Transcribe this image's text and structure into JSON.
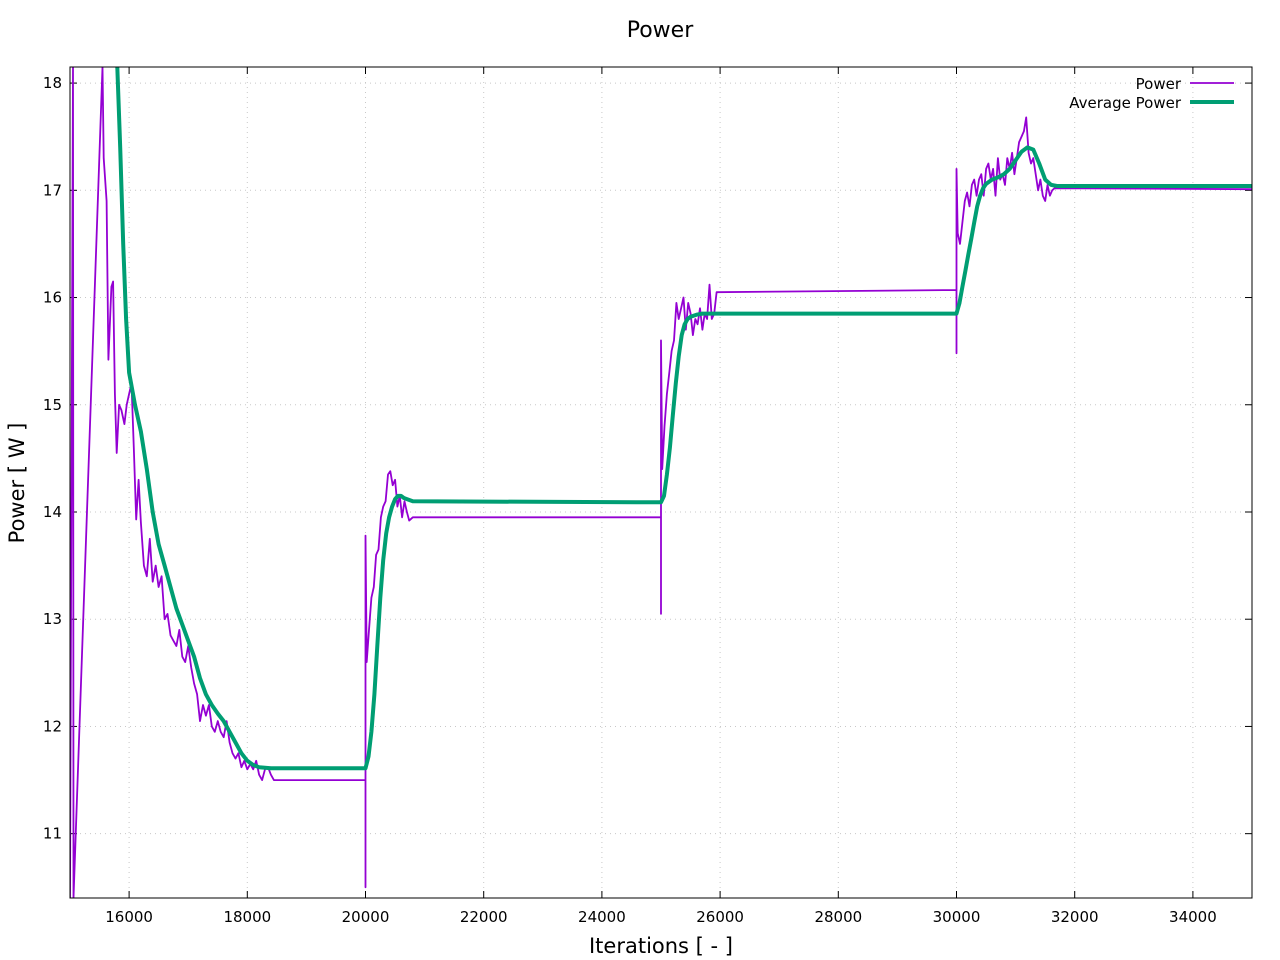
{
  "chart_data": {
    "type": "line",
    "title": "Power",
    "xlabel": "Iterations [ - ]",
    "ylabel": "Power [ W ]",
    "xlim": [
      15000,
      35000
    ],
    "ylim": [
      10.4,
      18.15
    ],
    "xticks": [
      16000,
      18000,
      20000,
      22000,
      24000,
      26000,
      28000,
      30000,
      32000,
      34000
    ],
    "yticks": [
      11,
      12,
      13,
      14,
      15,
      16,
      17,
      18
    ],
    "grid": true,
    "legend_position": "top-right",
    "series": [
      {
        "name": "Power",
        "color": "#9400d3",
        "points": [
          [
            15000,
            10.4
          ],
          [
            15050,
            18.15
          ],
          [
            15060,
            10.4
          ],
          [
            15550,
            18.15
          ],
          [
            15570,
            17.3
          ],
          [
            15620,
            16.9
          ],
          [
            15650,
            15.42
          ],
          [
            15700,
            16.1
          ],
          [
            15730,
            16.15
          ],
          [
            15760,
            15.1
          ],
          [
            15790,
            14.55
          ],
          [
            15830,
            15.0
          ],
          [
            15870,
            14.95
          ],
          [
            15920,
            14.82
          ],
          [
            15960,
            15.0
          ],
          [
            16000,
            15.1
          ],
          [
            16040,
            15.2
          ],
          [
            16080,
            14.6
          ],
          [
            16120,
            13.93
          ],
          [
            16160,
            14.3
          ],
          [
            16200,
            13.9
          ],
          [
            16250,
            13.5
          ],
          [
            16300,
            13.4
          ],
          [
            16350,
            13.75
          ],
          [
            16400,
            13.35
          ],
          [
            16450,
            13.5
          ],
          [
            16500,
            13.3
          ],
          [
            16550,
            13.4
          ],
          [
            16600,
            13.0
          ],
          [
            16650,
            13.05
          ],
          [
            16700,
            12.85
          ],
          [
            16750,
            12.8
          ],
          [
            16800,
            12.75
          ],
          [
            16850,
            12.9
          ],
          [
            16900,
            12.65
          ],
          [
            16950,
            12.6
          ],
          [
            17000,
            12.75
          ],
          [
            17050,
            12.55
          ],
          [
            17100,
            12.4
          ],
          [
            17150,
            12.3
          ],
          [
            17200,
            12.05
          ],
          [
            17250,
            12.2
          ],
          [
            17300,
            12.1
          ],
          [
            17350,
            12.2
          ],
          [
            17400,
            12.0
          ],
          [
            17450,
            11.95
          ],
          [
            17500,
            12.05
          ],
          [
            17550,
            11.95
          ],
          [
            17600,
            11.9
          ],
          [
            17650,
            12.05
          ],
          [
            17700,
            11.85
          ],
          [
            17750,
            11.75
          ],
          [
            17800,
            11.7
          ],
          [
            17850,
            11.75
          ],
          [
            17900,
            11.62
          ],
          [
            17950,
            11.68
          ],
          [
            18000,
            11.6
          ],
          [
            18050,
            11.65
          ],
          [
            18100,
            11.6
          ],
          [
            18150,
            11.68
          ],
          [
            18200,
            11.55
          ],
          [
            18250,
            11.5
          ],
          [
            18300,
            11.6
          ],
          [
            18350,
            11.62
          ],
          [
            18400,
            11.55
          ],
          [
            18450,
            11.5
          ],
          [
            18500,
            11.5
          ],
          [
            20000,
            11.5
          ],
          [
            20000,
            10.5
          ],
          [
            20000,
            13.78
          ],
          [
            20020,
            12.6
          ],
          [
            20060,
            12.9
          ],
          [
            20100,
            13.2
          ],
          [
            20140,
            13.3
          ],
          [
            20180,
            13.6
          ],
          [
            20220,
            13.65
          ],
          [
            20260,
            13.95
          ],
          [
            20300,
            14.05
          ],
          [
            20340,
            14.1
          ],
          [
            20380,
            14.35
          ],
          [
            20420,
            14.38
          ],
          [
            20460,
            14.25
          ],
          [
            20500,
            14.3
          ],
          [
            20540,
            14.05
          ],
          [
            20580,
            14.15
          ],
          [
            20620,
            13.95
          ],
          [
            20660,
            14.1
          ],
          [
            20700,
            14.0
          ],
          [
            20740,
            13.92
          ],
          [
            20800,
            13.95
          ],
          [
            25000,
            13.95
          ],
          [
            25000,
            13.05
          ],
          [
            25000,
            15.6
          ],
          [
            25020,
            14.4
          ],
          [
            25060,
            14.8
          ],
          [
            25100,
            15.1
          ],
          [
            25140,
            15.3
          ],
          [
            25180,
            15.5
          ],
          [
            25220,
            15.6
          ],
          [
            25260,
            15.95
          ],
          [
            25300,
            15.8
          ],
          [
            25340,
            15.9
          ],
          [
            25380,
            16.0
          ],
          [
            25420,
            15.7
          ],
          [
            25460,
            15.95
          ],
          [
            25500,
            15.85
          ],
          [
            25540,
            15.65
          ],
          [
            25580,
            15.8
          ],
          [
            25620,
            15.75
          ],
          [
            25660,
            15.9
          ],
          [
            25700,
            15.7
          ],
          [
            25740,
            15.85
          ],
          [
            25780,
            15.8
          ],
          [
            25820,
            16.12
          ],
          [
            25860,
            15.8
          ],
          [
            25900,
            15.85
          ],
          [
            25940,
            16.05
          ],
          [
            30000,
            16.07
          ],
          [
            30000,
            15.48
          ],
          [
            30000,
            17.2
          ],
          [
            30020,
            16.6
          ],
          [
            30060,
            16.5
          ],
          [
            30100,
            16.7
          ],
          [
            30140,
            16.9
          ],
          [
            30180,
            16.98
          ],
          [
            30220,
            16.85
          ],
          [
            30260,
            17.05
          ],
          [
            30300,
            17.1
          ],
          [
            30340,
            16.95
          ],
          [
            30380,
            17.1
          ],
          [
            30420,
            17.15
          ],
          [
            30460,
            16.95
          ],
          [
            30500,
            17.2
          ],
          [
            30540,
            17.25
          ],
          [
            30580,
            17.1
          ],
          [
            30620,
            17.2
          ],
          [
            30660,
            16.95
          ],
          [
            30700,
            17.3
          ],
          [
            30740,
            17.1
          ],
          [
            30780,
            17.15
          ],
          [
            30820,
            17.05
          ],
          [
            30860,
            17.3
          ],
          [
            30900,
            17.2
          ],
          [
            30940,
            17.35
          ],
          [
            30980,
            17.15
          ],
          [
            31020,
            17.3
          ],
          [
            31060,
            17.45
          ],
          [
            31100,
            17.5
          ],
          [
            31140,
            17.55
          ],
          [
            31180,
            17.68
          ],
          [
            31220,
            17.35
          ],
          [
            31260,
            17.25
          ],
          [
            31300,
            17.3
          ],
          [
            31340,
            17.15
          ],
          [
            31380,
            17.0
          ],
          [
            31420,
            17.1
          ],
          [
            31460,
            16.95
          ],
          [
            31500,
            16.9
          ],
          [
            31540,
            17.05
          ],
          [
            31580,
            16.95
          ],
          [
            31620,
            17.0
          ],
          [
            31660,
            17.02
          ],
          [
            35000,
            17.01
          ]
        ]
      },
      {
        "name": "Average Power",
        "color": "#009e73",
        "points": [
          [
            15800,
            18.15
          ],
          [
            15850,
            17.4
          ],
          [
            15900,
            16.5
          ],
          [
            15950,
            15.8
          ],
          [
            16000,
            15.3
          ],
          [
            16100,
            15.0
          ],
          [
            16200,
            14.75
          ],
          [
            16300,
            14.4
          ],
          [
            16400,
            14.0
          ],
          [
            16500,
            13.7
          ],
          [
            16600,
            13.5
          ],
          [
            16700,
            13.3
          ],
          [
            16800,
            13.1
          ],
          [
            16900,
            12.95
          ],
          [
            17000,
            12.8
          ],
          [
            17100,
            12.65
          ],
          [
            17200,
            12.45
          ],
          [
            17300,
            12.3
          ],
          [
            17400,
            12.2
          ],
          [
            17500,
            12.12
          ],
          [
            17600,
            12.05
          ],
          [
            17700,
            11.95
          ],
          [
            17800,
            11.85
          ],
          [
            17900,
            11.75
          ],
          [
            18000,
            11.68
          ],
          [
            18100,
            11.64
          ],
          [
            18200,
            11.62
          ],
          [
            18400,
            11.61
          ],
          [
            20000,
            11.61
          ],
          [
            20050,
            11.72
          ],
          [
            20100,
            11.95
          ],
          [
            20150,
            12.3
          ],
          [
            20200,
            12.75
          ],
          [
            20250,
            13.2
          ],
          [
            20300,
            13.55
          ],
          [
            20350,
            13.8
          ],
          [
            20400,
            13.95
          ],
          [
            20450,
            14.05
          ],
          [
            20500,
            14.12
          ],
          [
            20550,
            14.15
          ],
          [
            20600,
            14.15
          ],
          [
            20650,
            14.13
          ],
          [
            20700,
            14.12
          ],
          [
            20800,
            14.1
          ],
          [
            25000,
            14.09
          ],
          [
            25050,
            14.15
          ],
          [
            25100,
            14.35
          ],
          [
            25150,
            14.6
          ],
          [
            25200,
            14.9
          ],
          [
            25250,
            15.2
          ],
          [
            25300,
            15.45
          ],
          [
            25350,
            15.65
          ],
          [
            25400,
            15.75
          ],
          [
            25450,
            15.8
          ],
          [
            25500,
            15.82
          ],
          [
            25600,
            15.84
          ],
          [
            25700,
            15.85
          ],
          [
            30000,
            15.85
          ],
          [
            30050,
            15.95
          ],
          [
            30100,
            16.1
          ],
          [
            30150,
            16.25
          ],
          [
            30200,
            16.4
          ],
          [
            30250,
            16.55
          ],
          [
            30300,
            16.7
          ],
          [
            30350,
            16.85
          ],
          [
            30400,
            16.95
          ],
          [
            30450,
            17.02
          ],
          [
            30500,
            17.06
          ],
          [
            30600,
            17.1
          ],
          [
            30700,
            17.12
          ],
          [
            30800,
            17.15
          ],
          [
            30900,
            17.2
          ],
          [
            31000,
            17.28
          ],
          [
            31100,
            17.36
          ],
          [
            31200,
            17.4
          ],
          [
            31300,
            17.38
          ],
          [
            31400,
            17.25
          ],
          [
            31500,
            17.1
          ],
          [
            31600,
            17.05
          ],
          [
            31700,
            17.04
          ],
          [
            35000,
            17.04
          ]
        ]
      }
    ]
  }
}
